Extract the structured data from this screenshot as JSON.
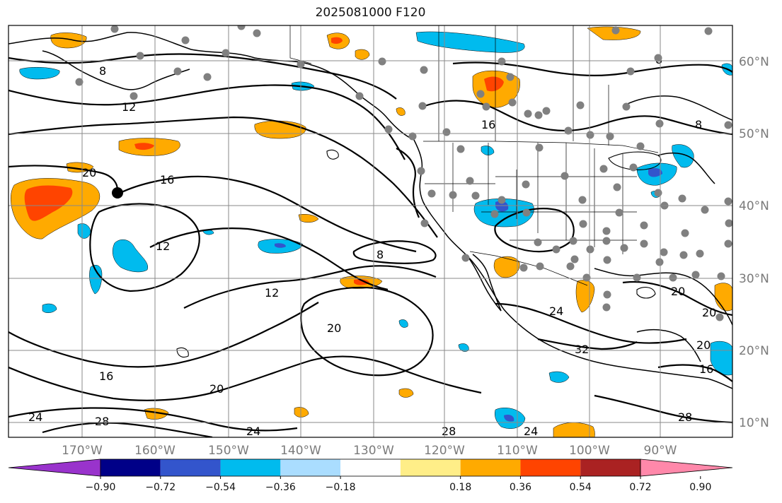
{
  "title": "2025081000 F120",
  "map": {
    "lon_labels": [
      "170°W",
      "160°W",
      "150°W",
      "140°W",
      "130°W",
      "120°W",
      "110°W",
      "100°W",
      "90°W"
    ],
    "lat_labels": [
      "60°N",
      "50°N",
      "40°N",
      "30°N",
      "20°N",
      "10°N"
    ],
    "contour_labels": [
      "8",
      "12",
      "16",
      "20",
      "24",
      "28",
      "32"
    ],
    "marker": {
      "lon": -165.5,
      "lat": 42.0
    }
  },
  "colorbar": {
    "ticks": [
      "−0.90",
      "−0.72",
      "−0.54",
      "−0.36",
      "−0.18",
      "0.18",
      "0.36",
      "0.54",
      "0.72",
      "0.90"
    ],
    "colors": [
      "#9933cc",
      "#000088",
      "#3355cc",
      "#00bbee",
      "#aaddff",
      "#ffffff",
      "#ffee88",
      "#ffaa00",
      "#ff4400",
      "#aa2222",
      "#ff88aa"
    ]
  },
  "colors": {
    "blue_light": "#00bbee",
    "blue_dark": "#3355cc",
    "orange": "#ffaa00",
    "red": "#ff4400",
    "station": "#808080"
  }
}
